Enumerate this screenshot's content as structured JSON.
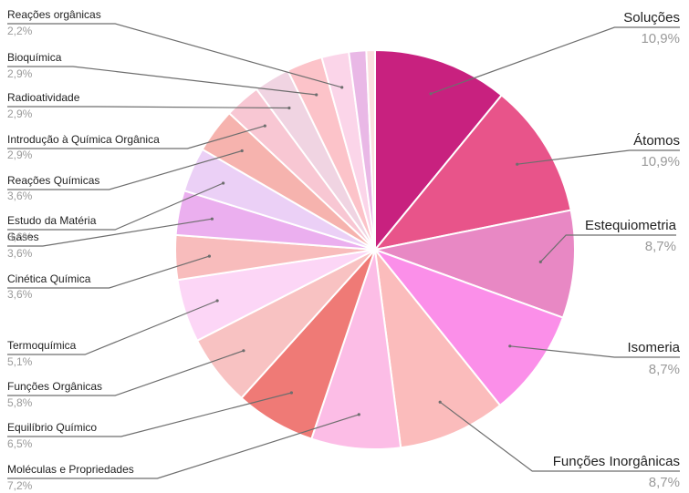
{
  "chart_data": {
    "type": "pie",
    "title": "",
    "legend": "none",
    "slices": [
      {
        "label": "Soluções",
        "value": 10.9,
        "pct_label": "10,9%",
        "color": "#c8217f"
      },
      {
        "label": "Átomos",
        "value": 10.9,
        "pct_label": "10,9%",
        "color": "#e8548a"
      },
      {
        "label": "Estequiometria",
        "value": 8.7,
        "pct_label": "8,7%",
        "color": "#e888c4"
      },
      {
        "label": "Isomeria",
        "value": 8.7,
        "pct_label": "8,7%",
        "color": "#fb8fe9"
      },
      {
        "label": "Funções Inorgânicas",
        "value": 8.7,
        "pct_label": "8,7%",
        "color": "#fbbcbc"
      },
      {
        "label": "Moléculas e Propriedades",
        "value": 7.2,
        "pct_label": "7,2%",
        "color": "#fcbde6"
      },
      {
        "label": "Equilíbrio Químico",
        "value": 6.5,
        "pct_label": "6,5%",
        "color": "#ef7a76"
      },
      {
        "label": "Funções Orgânicas",
        "value": 5.8,
        "pct_label": "5,8%",
        "color": "#f8c2c2"
      },
      {
        "label": "Termoquímica",
        "value": 5.1,
        "pct_label": "5,1%",
        "color": "#fcd6f6"
      },
      {
        "label": "Cinética Química",
        "value": 3.6,
        "pct_label": "3,6%",
        "color": "#f8bcbc"
      },
      {
        "label": "Gases",
        "value": 3.6,
        "pct_label": "3,6%",
        "color": "#ebafef"
      },
      {
        "label": "Estudo da Matéria",
        "value": 3.6,
        "pct_label": "3,6%",
        "color": "#ebd0f6"
      },
      {
        "label": "Reações Químicas",
        "value": 3.6,
        "pct_label": "3,6%",
        "color": "#f6b3ae"
      },
      {
        "label": "Introdução à Química Orgânica",
        "value": 2.9,
        "pct_label": "2,9%",
        "color": "#f8c7d3"
      },
      {
        "label": "Radioatividade",
        "value": 2.9,
        "pct_label": "2,9%",
        "color": "#f0d4e2"
      },
      {
        "label": "Bioquímica",
        "value": 2.9,
        "pct_label": "2,9%",
        "color": "#fcc3c9"
      },
      {
        "label": "Reações orgânicas",
        "value": 2.2,
        "pct_label": "2,2%",
        "color": "#fbd5e9"
      },
      {
        "label": "",
        "value": 1.4,
        "pct_label": "",
        "color": "#e9b8e6"
      },
      {
        "label": "",
        "value": 0.7,
        "pct_label": "",
        "color": "#fbe0e0"
      }
    ]
  }
}
